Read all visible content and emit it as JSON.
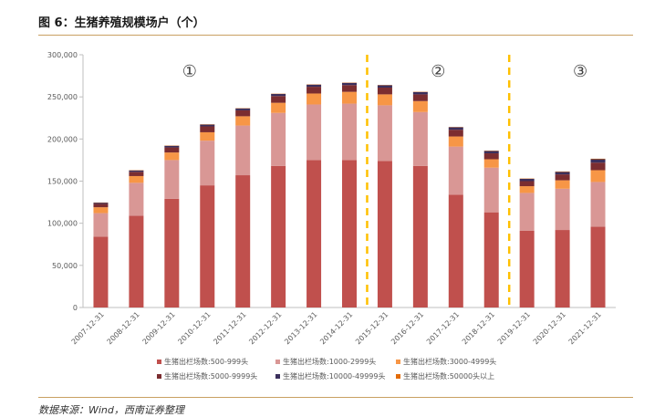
{
  "figure": {
    "title": "图 6：生猪养殖规模场户（个）",
    "source": "数据来源：Wind，西南证券整理"
  },
  "chart_data": {
    "type": "bar",
    "stacked": true,
    "categories": [
      "2007-12-31",
      "2008-12-31",
      "2009-12-31",
      "2010-12-31",
      "2011-12-31",
      "2012-12-31",
      "2013-12-31",
      "2014-12-31",
      "2015-12-31",
      "2016-12-31",
      "2017-12-31",
      "2018-12-31",
      "2019-12-31",
      "2020-12-31",
      "2021-12-31"
    ],
    "ylim": [
      0,
      300000
    ],
    "yticks": [
      0,
      50000,
      100000,
      150000,
      200000,
      250000,
      300000
    ],
    "ytick_labels": [
      "0",
      "50,000",
      "100,000",
      "150,000",
      "200,000",
      "250,000",
      "300,000"
    ],
    "legend_position": "bottom",
    "grid": false,
    "series": [
      {
        "name": "生猪出栏场数:500-999头",
        "color": "#c0504d",
        "values": [
          84000,
          109000,
          129000,
          145000,
          157000,
          168000,
          175000,
          175000,
          174000,
          168000,
          134000,
          113000,
          91000,
          92000,
          96000
        ]
      },
      {
        "name": "生猪出栏场数:1000-2999头",
        "color": "#d99795",
        "values": [
          28000,
          39000,
          46000,
          53000,
          59000,
          63000,
          66000,
          67000,
          66000,
          64000,
          57000,
          53000,
          45000,
          49000,
          53000
        ]
      },
      {
        "name": "生猪出栏场数:3000-4999头",
        "color": "#f79646",
        "values": [
          7000,
          8000,
          9000,
          10000,
          11000,
          12000,
          13000,
          14000,
          13000,
          13000,
          12000,
          10000,
          8000,
          10000,
          14000
        ]
      },
      {
        "name": "生猪出栏场数:5000-9999头",
        "color": "#7b2d30",
        "values": [
          4000,
          5000,
          6000,
          7000,
          7000,
          8000,
          8000,
          8000,
          8000,
          8000,
          8000,
          7000,
          6000,
          7000,
          9000
        ]
      },
      {
        "name": "生猪出栏场数:10000-49999头",
        "color": "#3b2f5c",
        "values": [
          1500,
          1800,
          2000,
          2200,
          2300,
          2500,
          2600,
          2700,
          2800,
          2800,
          2900,
          2800,
          2700,
          3000,
          4000
        ]
      },
      {
        "name": "生猪出栏场数:50000头以上",
        "color": "#e36c09",
        "values": [
          100,
          120,
          150,
          170,
          190,
          210,
          230,
          250,
          270,
          290,
          320,
          350,
          380,
          450,
          600
        ]
      }
    ],
    "annotations": [
      {
        "text": "①",
        "x_between": [
          "2009-12-31",
          "2010-12-31"
        ]
      },
      {
        "text": "②",
        "x_between": [
          "2016-12-31",
          "2017-12-31"
        ]
      },
      {
        "text": "③",
        "x_between": [
          "2020-12-31",
          "2021-12-31"
        ]
      }
    ],
    "dividers": [
      {
        "after": "2014-12-31",
        "color": "#ffc000"
      },
      {
        "after": "2018-12-31",
        "color": "#ffc000"
      }
    ]
  }
}
